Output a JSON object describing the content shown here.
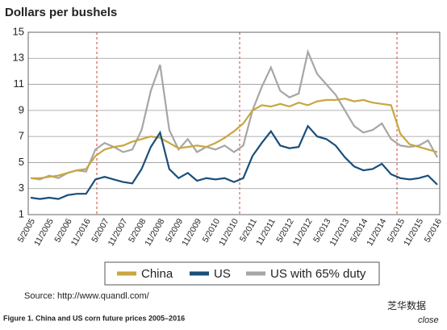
{
  "chart_data": {
    "type": "line",
    "title": "Dollars per bushels",
    "categories": [
      "5/2005",
      null,
      "11/2005",
      null,
      "5/2006",
      null,
      "11/2016",
      null,
      "5/2007",
      null,
      "11/2007",
      null,
      "5/2008",
      null,
      "11/2008",
      null,
      "5/2009",
      null,
      "11/2009",
      null,
      "5/2010",
      null,
      "11/2010",
      null,
      "5/2011",
      null,
      "11/2011",
      null,
      "5/2012",
      null,
      "11/2012",
      null,
      "5/2013",
      null,
      "11/2013",
      null,
      "5/2014",
      null,
      "11/2014",
      null,
      "5/2015",
      null,
      "11/2015",
      null,
      "5/2016"
    ],
    "series": [
      {
        "name": "China",
        "color": "#c9a63f",
        "values": [
          3.8,
          3.8,
          3.9,
          4.0,
          4.2,
          4.4,
          4.5,
          5.5,
          6.0,
          6.2,
          6.3,
          6.6,
          6.8,
          7.0,
          6.9,
          6.5,
          6.1,
          6.2,
          6.3,
          6.2,
          6.5,
          6.9,
          7.4,
          8.0,
          9.0,
          9.4,
          9.3,
          9.5,
          9.3,
          9.6,
          9.4,
          9.7,
          9.8,
          9.8,
          9.9,
          9.7,
          9.8,
          9.6,
          9.5,
          9.4,
          7.2,
          6.4,
          6.2,
          6.0,
          5.8
        ]
      },
      {
        "name": "US",
        "color": "#1a4e7a",
        "values": [
          2.3,
          2.2,
          2.3,
          2.2,
          2.5,
          2.6,
          2.6,
          3.7,
          3.9,
          3.7,
          3.5,
          3.4,
          4.5,
          6.2,
          7.3,
          4.5,
          3.8,
          4.2,
          3.6,
          3.8,
          3.7,
          3.8,
          3.5,
          3.8,
          5.5,
          6.5,
          7.4,
          6.3,
          6.1,
          6.2,
          7.8,
          7.0,
          6.8,
          6.3,
          5.4,
          4.7,
          4.4,
          4.5,
          4.9,
          4.1,
          3.8,
          3.7,
          3.8,
          4.0,
          3.3
        ]
      },
      {
        "name": "US with 65% duty",
        "color": "#a6a6a6",
        "values": [
          3.8,
          3.7,
          4.0,
          3.8,
          4.2,
          4.4,
          4.3,
          6.0,
          6.5,
          6.2,
          5.8,
          6.0,
          7.5,
          10.5,
          12.5,
          7.5,
          6.0,
          6.8,
          5.8,
          6.2,
          6.0,
          6.3,
          5.8,
          6.3,
          9.0,
          10.8,
          12.3,
          10.5,
          10.0,
          10.3,
          13.5,
          11.8,
          11.0,
          10.2,
          9.0,
          7.8,
          7.3,
          7.5,
          8.0,
          6.8,
          6.3,
          6.2,
          6.3,
          6.7,
          5.4
        ]
      }
    ],
    "ylim": [
      1,
      15
    ],
    "yticks": [
      1,
      3,
      5,
      7,
      9,
      11,
      13,
      15
    ],
    "grid": true,
    "source": "Source: http://www.quandl.com/",
    "caption": "Figure 1. China and US corn future prices 2005–2016",
    "watermark": "芝华数据",
    "watermark_sub": "close"
  }
}
